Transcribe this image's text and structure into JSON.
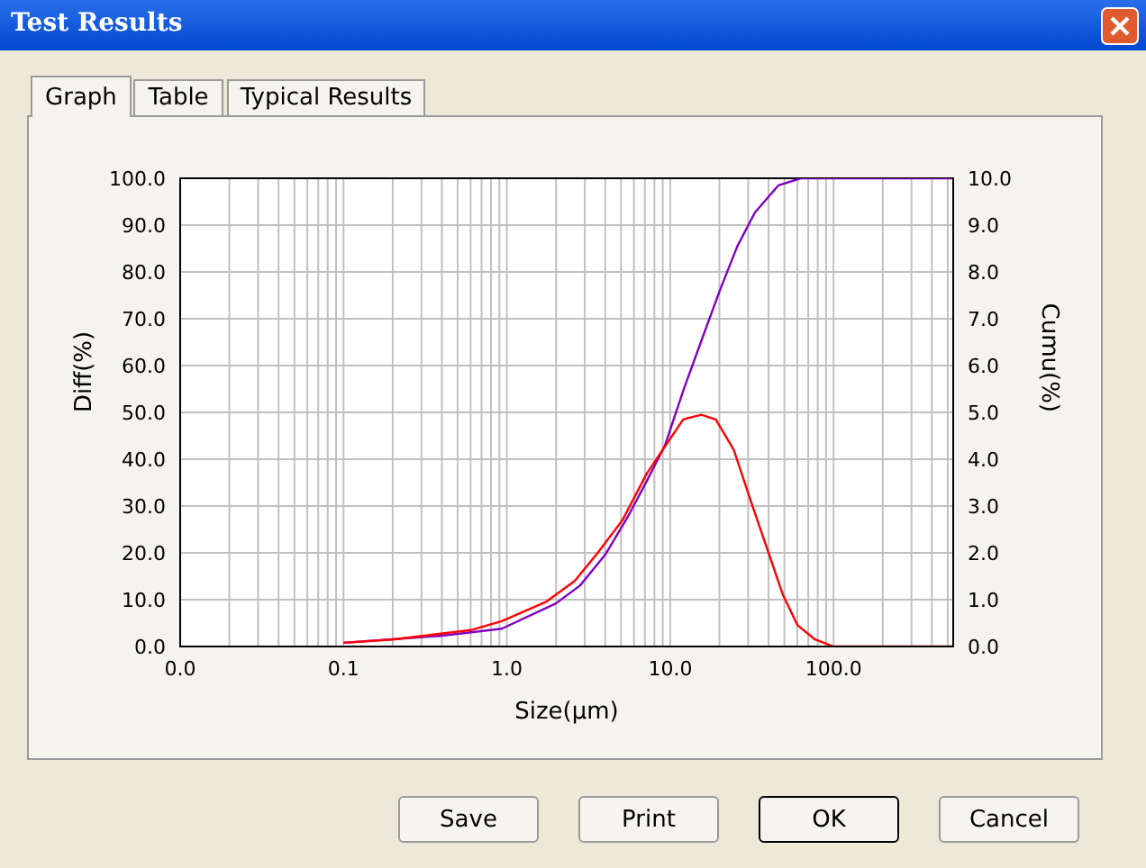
{
  "chart_data": {
    "type": "line",
    "title": "Test Results",
    "xlabel": "Size(μm)",
    "ylabel": "Diff(%)",
    "y2label": "Cumu(%)",
    "annotations": [
      "Graph",
      "Table",
      "Typical Results",
      "Save",
      "Print",
      "OK",
      "Cancel"
    ],
    "log": "x",
    "grid": true,
    "legend": false,
    "marker": "none",
    "line_style": "solid",
    "xlim": [
      0.01,
      540
    ],
    "xticks": [
      {
        "value": 0.01,
        "label": "0.0"
      },
      {
        "value": 0.1,
        "label": "0.1"
      },
      {
        "value": 1,
        "label": "1.0"
      },
      {
        "value": 10,
        "label": "10.0"
      },
      {
        "value": 100,
        "label": "100.0"
      }
    ],
    "ylim": [
      0,
      100
    ],
    "yticks": [
      {
        "value": 0,
        "label": "0.0"
      },
      {
        "value": 10,
        "label": "10.0"
      },
      {
        "value": 20,
        "label": "20.0"
      },
      {
        "value": 30,
        "label": "30.0"
      },
      {
        "value": 40,
        "label": "40.0"
      },
      {
        "value": 50,
        "label": "50.0"
      },
      {
        "value": 60,
        "label": "60.0"
      },
      {
        "value": 70,
        "label": "70.0"
      },
      {
        "value": 80,
        "label": "80.0"
      },
      {
        "value": 90,
        "label": "90.0"
      },
      {
        "value": 100,
        "label": "100.0"
      }
    ],
    "y2lim": [
      0,
      10
    ],
    "y2ticks": [
      {
        "value": 0,
        "label": "0.0"
      },
      {
        "value": 1,
        "label": "1.0"
      },
      {
        "value": 2,
        "label": "2.0"
      },
      {
        "value": 3,
        "label": "3.0"
      },
      {
        "value": 4,
        "label": "4.0"
      },
      {
        "value": 5,
        "label": "5.0"
      },
      {
        "value": 6,
        "label": "6.0"
      },
      {
        "value": 7,
        "label": "7.0"
      },
      {
        "value": 8,
        "label": "8.0"
      },
      {
        "value": 9,
        "label": "9.0"
      },
      {
        "value": 10,
        "label": "10.0"
      }
    ],
    "series": [
      {
        "color": "#8000c0",
        "axis": "y2",
        "x": [
          0.1,
          0.4,
          0.93,
          2.0,
          2.8,
          4.0,
          5.5,
          7.2,
          9.3,
          12,
          15.4,
          20,
          25.7,
          33,
          46,
          63,
          540
        ],
        "values": [
          0.08,
          0.23,
          0.38,
          0.92,
          1.3,
          1.96,
          2.77,
          3.54,
          4.3,
          5.46,
          6.5,
          7.58,
          8.54,
          9.27,
          9.85,
          10,
          10
        ]
      },
      {
        "color": "#ff0000",
        "x": [
          0.1,
          0.2,
          0.6,
          0.93,
          1.75,
          2.6,
          3.6,
          5.1,
          7.2,
          12,
          15.5,
          19,
          24.5,
          31.6,
          40,
          49,
          60,
          77,
          100,
          540
        ],
        "values": [
          0.8,
          1.5,
          3.5,
          5.4,
          9.6,
          14,
          20,
          27,
          37,
          48.5,
          49.5,
          48.5,
          42,
          30.4,
          20,
          11,
          4.6,
          1.5,
          0,
          0
        ]
      }
    ]
  }
}
